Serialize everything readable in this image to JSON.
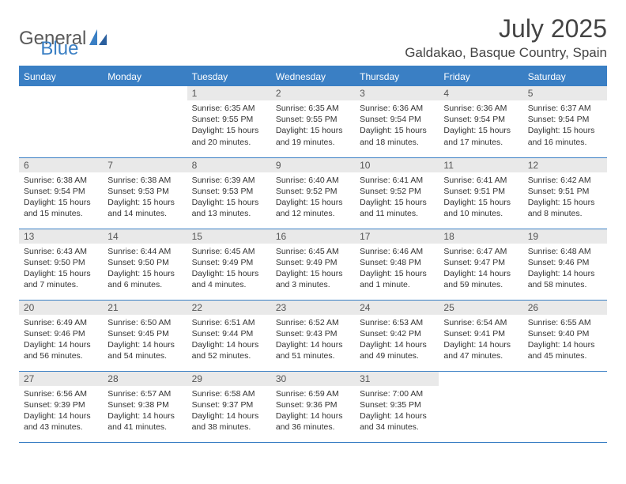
{
  "logo": {
    "text1": "General",
    "text2": "Blue"
  },
  "title": "July 2025",
  "location": "Galdakao, Basque Country, Spain",
  "colors": {
    "accent": "#3a7fc4",
    "header_text": "#ffffff",
    "daynum_bg": "#e9e9e9",
    "text": "#333333",
    "logo_gray": "#5a5a5a"
  },
  "weekdays": [
    "Sunday",
    "Monday",
    "Tuesday",
    "Wednesday",
    "Thursday",
    "Friday",
    "Saturday"
  ],
  "weeks": [
    [
      null,
      null,
      {
        "n": "1",
        "sr": "6:35 AM",
        "ss": "9:55 PM",
        "dl": "15 hours and 20 minutes."
      },
      {
        "n": "2",
        "sr": "6:35 AM",
        "ss": "9:55 PM",
        "dl": "15 hours and 19 minutes."
      },
      {
        "n": "3",
        "sr": "6:36 AM",
        "ss": "9:54 PM",
        "dl": "15 hours and 18 minutes."
      },
      {
        "n": "4",
        "sr": "6:36 AM",
        "ss": "9:54 PM",
        "dl": "15 hours and 17 minutes."
      },
      {
        "n": "5",
        "sr": "6:37 AM",
        "ss": "9:54 PM",
        "dl": "15 hours and 16 minutes."
      }
    ],
    [
      {
        "n": "6",
        "sr": "6:38 AM",
        "ss": "9:54 PM",
        "dl": "15 hours and 15 minutes."
      },
      {
        "n": "7",
        "sr": "6:38 AM",
        "ss": "9:53 PM",
        "dl": "15 hours and 14 minutes."
      },
      {
        "n": "8",
        "sr": "6:39 AM",
        "ss": "9:53 PM",
        "dl": "15 hours and 13 minutes."
      },
      {
        "n": "9",
        "sr": "6:40 AM",
        "ss": "9:52 PM",
        "dl": "15 hours and 12 minutes."
      },
      {
        "n": "10",
        "sr": "6:41 AM",
        "ss": "9:52 PM",
        "dl": "15 hours and 11 minutes."
      },
      {
        "n": "11",
        "sr": "6:41 AM",
        "ss": "9:51 PM",
        "dl": "15 hours and 10 minutes."
      },
      {
        "n": "12",
        "sr": "6:42 AM",
        "ss": "9:51 PM",
        "dl": "15 hours and 8 minutes."
      }
    ],
    [
      {
        "n": "13",
        "sr": "6:43 AM",
        "ss": "9:50 PM",
        "dl": "15 hours and 7 minutes."
      },
      {
        "n": "14",
        "sr": "6:44 AM",
        "ss": "9:50 PM",
        "dl": "15 hours and 6 minutes."
      },
      {
        "n": "15",
        "sr": "6:45 AM",
        "ss": "9:49 PM",
        "dl": "15 hours and 4 minutes."
      },
      {
        "n": "16",
        "sr": "6:45 AM",
        "ss": "9:49 PM",
        "dl": "15 hours and 3 minutes."
      },
      {
        "n": "17",
        "sr": "6:46 AM",
        "ss": "9:48 PM",
        "dl": "15 hours and 1 minute."
      },
      {
        "n": "18",
        "sr": "6:47 AM",
        "ss": "9:47 PM",
        "dl": "14 hours and 59 minutes."
      },
      {
        "n": "19",
        "sr": "6:48 AM",
        "ss": "9:46 PM",
        "dl": "14 hours and 58 minutes."
      }
    ],
    [
      {
        "n": "20",
        "sr": "6:49 AM",
        "ss": "9:46 PM",
        "dl": "14 hours and 56 minutes."
      },
      {
        "n": "21",
        "sr": "6:50 AM",
        "ss": "9:45 PM",
        "dl": "14 hours and 54 minutes."
      },
      {
        "n": "22",
        "sr": "6:51 AM",
        "ss": "9:44 PM",
        "dl": "14 hours and 52 minutes."
      },
      {
        "n": "23",
        "sr": "6:52 AM",
        "ss": "9:43 PM",
        "dl": "14 hours and 51 minutes."
      },
      {
        "n": "24",
        "sr": "6:53 AM",
        "ss": "9:42 PM",
        "dl": "14 hours and 49 minutes."
      },
      {
        "n": "25",
        "sr": "6:54 AM",
        "ss": "9:41 PM",
        "dl": "14 hours and 47 minutes."
      },
      {
        "n": "26",
        "sr": "6:55 AM",
        "ss": "9:40 PM",
        "dl": "14 hours and 45 minutes."
      }
    ],
    [
      {
        "n": "27",
        "sr": "6:56 AM",
        "ss": "9:39 PM",
        "dl": "14 hours and 43 minutes."
      },
      {
        "n": "28",
        "sr": "6:57 AM",
        "ss": "9:38 PM",
        "dl": "14 hours and 41 minutes."
      },
      {
        "n": "29",
        "sr": "6:58 AM",
        "ss": "9:37 PM",
        "dl": "14 hours and 38 minutes."
      },
      {
        "n": "30",
        "sr": "6:59 AM",
        "ss": "9:36 PM",
        "dl": "14 hours and 36 minutes."
      },
      {
        "n": "31",
        "sr": "7:00 AM",
        "ss": "9:35 PM",
        "dl": "14 hours and 34 minutes."
      },
      null,
      null
    ]
  ],
  "labels": {
    "sunrise": "Sunrise:",
    "sunset": "Sunset:",
    "daylight": "Daylight:"
  }
}
